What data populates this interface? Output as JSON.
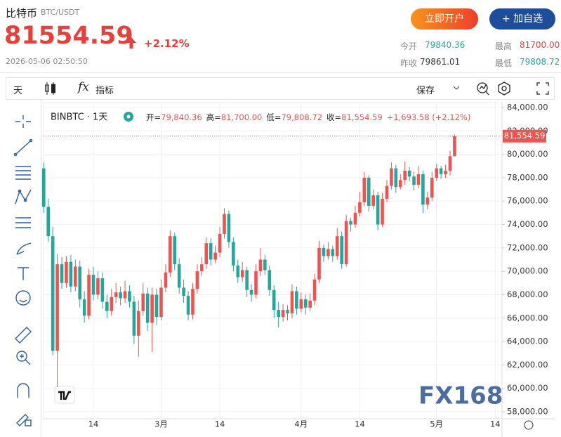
{
  "header": {
    "title": "比特币",
    "pair": "BTC/USDT",
    "price": "81554.59",
    "change": "+2.12%",
    "time": "2026-05-06 02:50:50",
    "buttons": [
      "立即开户",
      "+ 加自选"
    ],
    "stats": [
      {
        "label": "今开",
        "value": "79840.36"
      },
      {
        "label": "最高",
        "value": "81700.00"
      },
      {
        "label": "昨收",
        "value": "79861.01"
      },
      {
        "label": "最低",
        "value": "79808.72"
      }
    ]
  },
  "toolbar": {
    "interval": "天",
    "indicators": "指标",
    "save": "保存"
  },
  "chart_data": {
    "type": "candlestick",
    "symbol": "BINBTC · 1天",
    "legend": [
      {
        "label": "开=",
        "value": "79,840.36"
      },
      {
        "label": "高=",
        "value": "81,700.00"
      },
      {
        "label": "低=",
        "value": "79,808.72"
      },
      {
        "label": "收=",
        "value": "81,554.59"
      }
    ],
    "change_label": "+1,693.58 (+2.12%)",
    "watermark": "FX168",
    "up_color": "#ef5350",
    "down_color": "#26a69a",
    "grid": true,
    "categories": [
      null,
      null,
      null,
      null,
      null,
      null,
      null,
      null,
      null,
      null,
      null,
      "14",
      null,
      null,
      null,
      null,
      null,
      null,
      null,
      null,
      null,
      null,
      null,
      null,
      null,
      null,
      "3月",
      null,
      null,
      null,
      null,
      null,
      null,
      null,
      null,
      null,
      null,
      null,
      null,
      "14",
      null,
      null,
      null,
      null,
      null,
      null,
      null,
      null,
      null,
      null,
      null,
      null,
      null,
      null,
      null,
      null,
      null,
      "4月",
      null,
      null,
      null,
      null,
      null,
      null,
      null,
      null,
      null,
      null,
      null,
      null,
      "14",
      null,
      null,
      null,
      null,
      null,
      null,
      null,
      null,
      null,
      null,
      null,
      null,
      null,
      null,
      null,
      null,
      "5月",
      null,
      null,
      null,
      null,
      null,
      null,
      null,
      null,
      null,
      null,
      null,
      null,
      "14"
    ],
    "open": [
      78800,
      75500,
      73000,
      63200,
      70600,
      69000,
      70800,
      68700,
      70400,
      67600,
      66200,
      69700,
      68000,
      69400,
      67400,
      66600,
      67800,
      68200,
      67700,
      68300,
      67400,
      64500,
      66600,
      68100,
      65600,
      68000,
      66100,
      68600,
      69900,
      73000,
      70600,
      68600,
      67900,
      66300,
      68500,
      70000,
      70600,
      72400,
      71000,
      71600,
      73200,
      74900,
      72500,
      70500,
      69500,
      70100,
      68400,
      68000,
      70000,
      71000,
      70100,
      68400,
      66700,
      66100,
      66700,
      66400,
      68300,
      66800,
      67600,
      66900,
      67500,
      69300,
      72000,
      71300,
      71900,
      71300,
      73000,
      70600,
      74300,
      74000,
      75000,
      75900,
      78000,
      75600,
      76500,
      74000,
      76200,
      77300,
      78800,
      77200,
      77800,
      78600,
      78100,
      77400,
      78300,
      75700,
      76300,
      78000,
      78800,
      78300,
      78600,
      79840,
      null,
      null,
      null,
      null,
      null,
      null,
      null,
      null,
      null
    ],
    "high": [
      79300,
      76200,
      73800,
      71500,
      71200,
      71300,
      71400,
      71000,
      70900,
      68300,
      70200,
      70400,
      70000,
      69900,
      68000,
      68500,
      69000,
      68700,
      69200,
      68800,
      67900,
      67500,
      69000,
      68600,
      68600,
      68500,
      69300,
      70600,
      73500,
      73300,
      71100,
      69300,
      68300,
      69000,
      70600,
      71200,
      72900,
      72800,
      72200,
      73800,
      75400,
      75200,
      72900,
      71000,
      70800,
      70400,
      68900,
      70600,
      72000,
      71400,
      70500,
      68800,
      67400,
      67200,
      67100,
      68900,
      68700,
      68200,
      68000,
      68100,
      69800,
      72600,
      72300,
      72500,
      72200,
      73700,
      73400,
      74800,
      74600,
      75600,
      76800,
      78500,
      78200,
      77000,
      76800,
      76700,
      77800,
      79300,
      79100,
      78300,
      79400,
      78900,
      78500,
      79000,
      78600,
      76800,
      78500,
      79200,
      79000,
      79100,
      80300,
      81700,
      null,
      null,
      null,
      null,
      null,
      null,
      null,
      null,
      null
    ],
    "low": [
      75000,
      72500,
      62800,
      60100,
      68500,
      68600,
      68200,
      68300,
      66900,
      65600,
      65900,
      67500,
      67600,
      66800,
      66000,
      66200,
      67300,
      67100,
      67300,
      66900,
      63800,
      62700,
      66200,
      64900,
      63100,
      65400,
      65800,
      68200,
      69500,
      70100,
      68100,
      67300,
      65800,
      65900,
      68100,
      69600,
      70200,
      70500,
      70700,
      71200,
      72800,
      72000,
      70000,
      69000,
      69100,
      67800,
      67400,
      67700,
      69600,
      69700,
      67900,
      66000,
      65200,
      65700,
      65800,
      66000,
      66300,
      66500,
      66300,
      66600,
      67100,
      69000,
      70800,
      71000,
      70800,
      71000,
      70200,
      70400,
      73400,
      73700,
      74700,
      75600,
      75100,
      75300,
      73500,
      73800,
      75900,
      77000,
      76700,
      77000,
      77400,
      77700,
      76900,
      77100,
      75000,
      75300,
      76000,
      77700,
      77900,
      78000,
      78200,
      79808.72,
      null,
      null,
      null,
      null,
      null,
      null,
      null,
      null,
      null
    ],
    "close": [
      75500,
      73000,
      63200,
      70600,
      69000,
      70800,
      68700,
      70400,
      67600,
      66200,
      69700,
      68000,
      69400,
      67400,
      66600,
      67800,
      68200,
      67700,
      68300,
      67400,
      64500,
      66600,
      68100,
      65600,
      68000,
      66100,
      68600,
      69900,
      73000,
      70600,
      68600,
      67900,
      66300,
      68500,
      70000,
      70600,
      72400,
      71000,
      71600,
      73200,
      74900,
      72500,
      70500,
      69500,
      70100,
      68400,
      68000,
      70000,
      71000,
      70100,
      68400,
      66700,
      66100,
      66700,
      66400,
      68300,
      66800,
      67600,
      66900,
      67500,
      69300,
      72000,
      71300,
      71900,
      71300,
      73000,
      70600,
      74300,
      74000,
      75000,
      75900,
      78000,
      75600,
      76500,
      74000,
      76200,
      77300,
      78800,
      77200,
      77800,
      78600,
      78100,
      77400,
      78300,
      75700,
      76300,
      78000,
      78800,
      78300,
      78600,
      79840,
      81554.59,
      null,
      null,
      null,
      null,
      null,
      null,
      null,
      null,
      null
    ],
    "last_label": {
      "value": 81554.59,
      "label": "81,554.59"
    },
    "ylim": [
      58000,
      84000
    ],
    "yticks": [
      {
        "value": 84000,
        "label": "84,000.00"
      },
      {
        "value": 82000,
        "label": "82,000.00"
      },
      {
        "value": 80000,
        "label": "80,000.00"
      },
      {
        "value": 78000,
        "label": "78,000.00"
      },
      {
        "value": 76000,
        "label": "76,000.00"
      },
      {
        "value": 74000,
        "label": "74,000.00"
      },
      {
        "value": 72000,
        "label": "72,000.00"
      },
      {
        "value": 70000,
        "label": "70,000.00"
      },
      {
        "value": 68000,
        "label": "68,000.00"
      },
      {
        "value": 66000,
        "label": "66,000.00"
      },
      {
        "value": 64000,
        "label": "64,000.00"
      },
      {
        "value": 62000,
        "label": "62,000.00"
      },
      {
        "value": 60000,
        "label": "60,000.00"
      },
      {
        "value": 58000,
        "label": "58,000.00"
      }
    ]
  }
}
